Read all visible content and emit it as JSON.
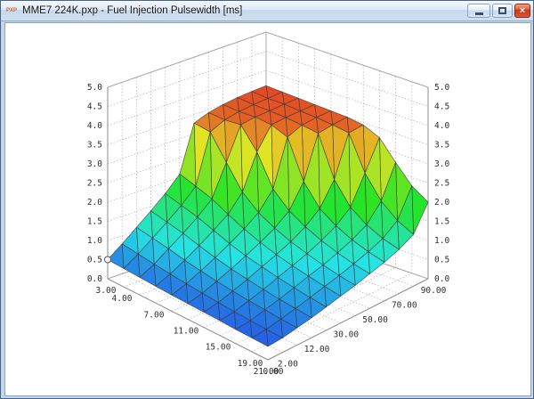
{
  "window": {
    "title": "MME7 224K.pxp - Fuel Injection Pulsewidth [ms]",
    "icon_text": "PXP",
    "buttons": {
      "minimize": "minimize",
      "maximize": "maximize",
      "close": "×"
    }
  },
  "theme": {
    "titlebar_gradient_top": "#f4f9fe",
    "titlebar_gradient_bottom": "#cfdff2",
    "close_button_red": "#da5530",
    "frame_blue": "#c3d6ec",
    "plot_background": "#ffffff",
    "grid_dot_color": "#b0b0b0",
    "axis_line_color": "#8c8c8c",
    "mesh_line_color": "#383838",
    "colormap_low": "#2f8fe0",
    "colormap_mid": "#3ed43e",
    "colormap_high": "#e0512a"
  },
  "chart_data": {
    "type": "surface",
    "title": "Fuel Injection Pulsewidth [ms]",
    "x_axis": {
      "grid_values": [
        3,
        4,
        5,
        7,
        9,
        11,
        13,
        15,
        17,
        19,
        21
      ],
      "tick_indices": [
        0,
        1,
        3,
        5,
        7,
        9,
        10
      ],
      "tick_labels": [
        "3.00",
        "4.00",
        "7.00",
        "11.00",
        "15.00",
        "19.00",
        "21.00"
      ]
    },
    "y_axis": {
      "grid_values": [
        0,
        2,
        6,
        12,
        20,
        30,
        40,
        50,
        60,
        70,
        80,
        90
      ],
      "tick_indices": [
        0,
        1,
        3,
        5,
        7,
        9,
        11
      ],
      "tick_labels": [
        "0.00",
        "2.00",
        "12.00",
        "30.00",
        "50.00",
        "70.00",
        "90.00"
      ]
    },
    "z_axis": {
      "min": 0,
      "max": 5,
      "step": 0.5,
      "tick_labels": [
        "0.0",
        "0.5",
        "1.0",
        "1.5",
        "2.0",
        "2.5",
        "3.0",
        "3.5",
        "4.0",
        "4.5",
        "5.0"
      ]
    },
    "values": [
      [
        0.5,
        0.48,
        0.46,
        0.44,
        0.42,
        0.41,
        0.4,
        0.39,
        0.37,
        0.36,
        0.35
      ],
      [
        0.78,
        0.72,
        0.66,
        0.61,
        0.56,
        0.52,
        0.48,
        0.45,
        0.42,
        0.4,
        0.38
      ],
      [
        1.08,
        1.0,
        0.92,
        0.82,
        0.74,
        0.67,
        0.61,
        0.56,
        0.52,
        0.48,
        0.45
      ],
      [
        1.38,
        1.28,
        1.18,
        1.05,
        0.93,
        0.83,
        0.75,
        0.68,
        0.62,
        0.57,
        0.52
      ],
      [
        1.7,
        1.58,
        1.46,
        1.3,
        1.14,
        1.01,
        0.91,
        0.82,
        0.74,
        0.67,
        0.61
      ],
      [
        2.08,
        1.94,
        1.79,
        1.57,
        1.37,
        1.2,
        1.06,
        0.95,
        0.86,
        0.77,
        0.7
      ],
      [
        3.28,
        3.22,
        2.6,
        2.0,
        1.64,
        1.41,
        1.23,
        1.09,
        0.97,
        0.87,
        0.79
      ],
      [
        3.42,
        3.4,
        3.44,
        2.9,
        2.1,
        1.7,
        1.45,
        1.26,
        1.11,
        0.99,
        0.9
      ],
      [
        3.5,
        3.48,
        3.5,
        3.46,
        3.3,
        2.3,
        1.76,
        1.47,
        1.27,
        1.12,
        1.01
      ],
      [
        3.55,
        3.52,
        3.52,
        3.5,
        3.46,
        3.4,
        2.35,
        1.78,
        1.48,
        1.28,
        1.15
      ],
      [
        3.58,
        3.55,
        3.55,
        3.52,
        3.5,
        3.46,
        3.4,
        2.5,
        1.92,
        1.56,
        1.35
      ],
      [
        3.6,
        3.58,
        3.56,
        3.54,
        3.52,
        3.5,
        3.44,
        3.25,
        2.75,
        2.28,
        2.0
      ]
    ],
    "marker": {
      "i": 0,
      "j": 0,
      "z": 0.5
    },
    "legend": "none",
    "grid": "dotted"
  }
}
